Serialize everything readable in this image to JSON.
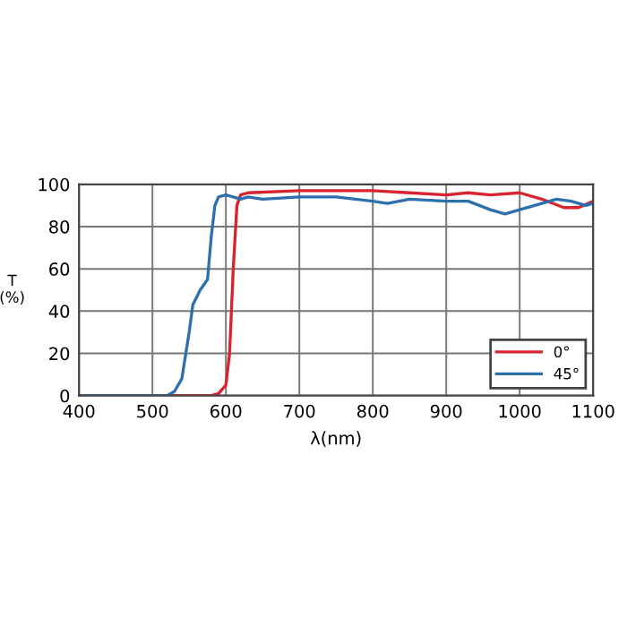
{
  "chart_data": {
    "type": "line",
    "xlabel": "λ(nm)",
    "ylabel": "T\n(%)",
    "xlim": [
      400,
      1100
    ],
    "xticks": [
      400,
      500,
      600,
      700,
      800,
      900,
      1000,
      1100
    ],
    "ylim": [
      0,
      100
    ],
    "yticks": [
      0,
      20,
      40,
      60,
      80,
      100
    ],
    "grid": true,
    "legend": "bottom right",
    "line_style": "solid",
    "series": [
      {
        "name": "0°",
        "color": "#d9232e",
        "x": [
          400,
          500,
          580,
          590,
          600,
          605,
          610,
          615,
          620,
          630,
          700,
          800,
          850,
          900,
          930,
          960,
          1000,
          1030,
          1060,
          1080,
          1100
        ],
        "values": [
          0,
          0,
          0,
          1,
          5,
          20,
          60,
          90,
          95,
          96,
          97,
          97,
          96,
          95,
          96,
          95,
          96,
          93,
          89,
          89,
          92
        ]
      },
      {
        "name": "45°",
        "color": "#2e6fad",
        "x": [
          400,
          500,
          520,
          530,
          540,
          550,
          555,
          565,
          575,
          580,
          585,
          590,
          600,
          610,
          620,
          630,
          650,
          700,
          750,
          800,
          820,
          850,
          900,
          930,
          960,
          980,
          1000,
          1030,
          1050,
          1070,
          1090,
          1100
        ],
        "values": [
          0,
          0,
          0,
          2,
          8,
          30,
          43,
          50,
          55,
          75,
          90,
          94,
          95,
          94,
          93,
          94,
          93,
          94,
          94,
          92,
          91,
          93,
          92,
          92,
          88,
          86,
          88,
          91,
          93,
          92,
          90,
          91
        ]
      }
    ]
  }
}
